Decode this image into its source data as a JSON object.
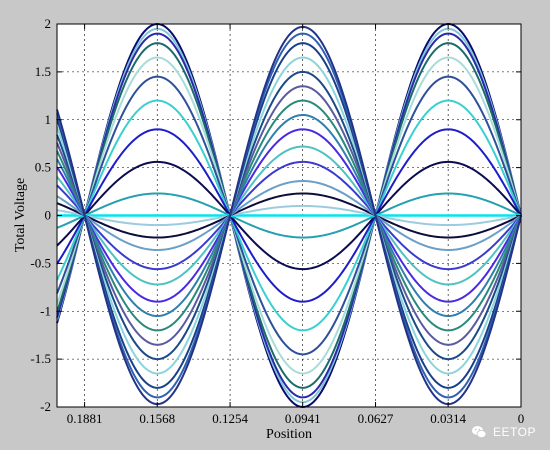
{
  "chart_data": {
    "type": "line",
    "xlabel": "Position",
    "ylabel": "Total Voltage",
    "xlim": [
      0.2,
      0
    ],
    "ylim": [
      -2,
      2
    ],
    "x_ticks": [
      0.1881,
      0.1568,
      0.1254,
      0.0941,
      0.0627,
      0.0314,
      0
    ],
    "x_tick_labels": [
      "0.1881",
      "0.1568",
      "0.1254",
      "0.0941",
      "0.0627",
      "0.0314",
      "0"
    ],
    "y_ticks": [
      -2,
      -1.5,
      -1,
      -0.5,
      0,
      0.5,
      1,
      1.5,
      2
    ],
    "y_tick_labels": [
      "-2",
      "-1.5",
      "-1",
      "-0.5",
      "0",
      "0.5",
      "1",
      "1.5",
      "2"
    ],
    "grid": true,
    "wave": {
      "half_period": 0.0627,
      "node_at": 0
    },
    "amplitudes": [
      2.0,
      1.95,
      1.9,
      1.8,
      1.65,
      1.45,
      1.2,
      0.9,
      0.56,
      0.23,
      0.0,
      -0.1,
      -0.23,
      -0.36,
      -0.56,
      -0.72,
      -0.9,
      -1.05,
      -1.2,
      -1.35,
      -1.5,
      -1.65,
      -1.8,
      -1.9,
      -1.97
    ],
    "colors": [
      "#0a0a6e",
      "#7fc7d8",
      "#2a2aa8",
      "#1a6b6b",
      "#a8dcd8",
      "#2e4f9a",
      "#3ad0d0",
      "#1e1ec8",
      "#0c0c50",
      "#26a0b0",
      "#00e5ee",
      "#9ccbe0",
      "#0d0d3c",
      "#6a9fc8",
      "#3b3bd0",
      "#4ec2c2",
      "#4a2ae0",
      "#2f7fae",
      "#2a8a7a",
      "#5a5aa0",
      "#1a4a88",
      "#8cd4dc",
      "#18408a",
      "#3060b0",
      "#223388"
    ]
  },
  "watermark": {
    "text": "EETOP"
  }
}
